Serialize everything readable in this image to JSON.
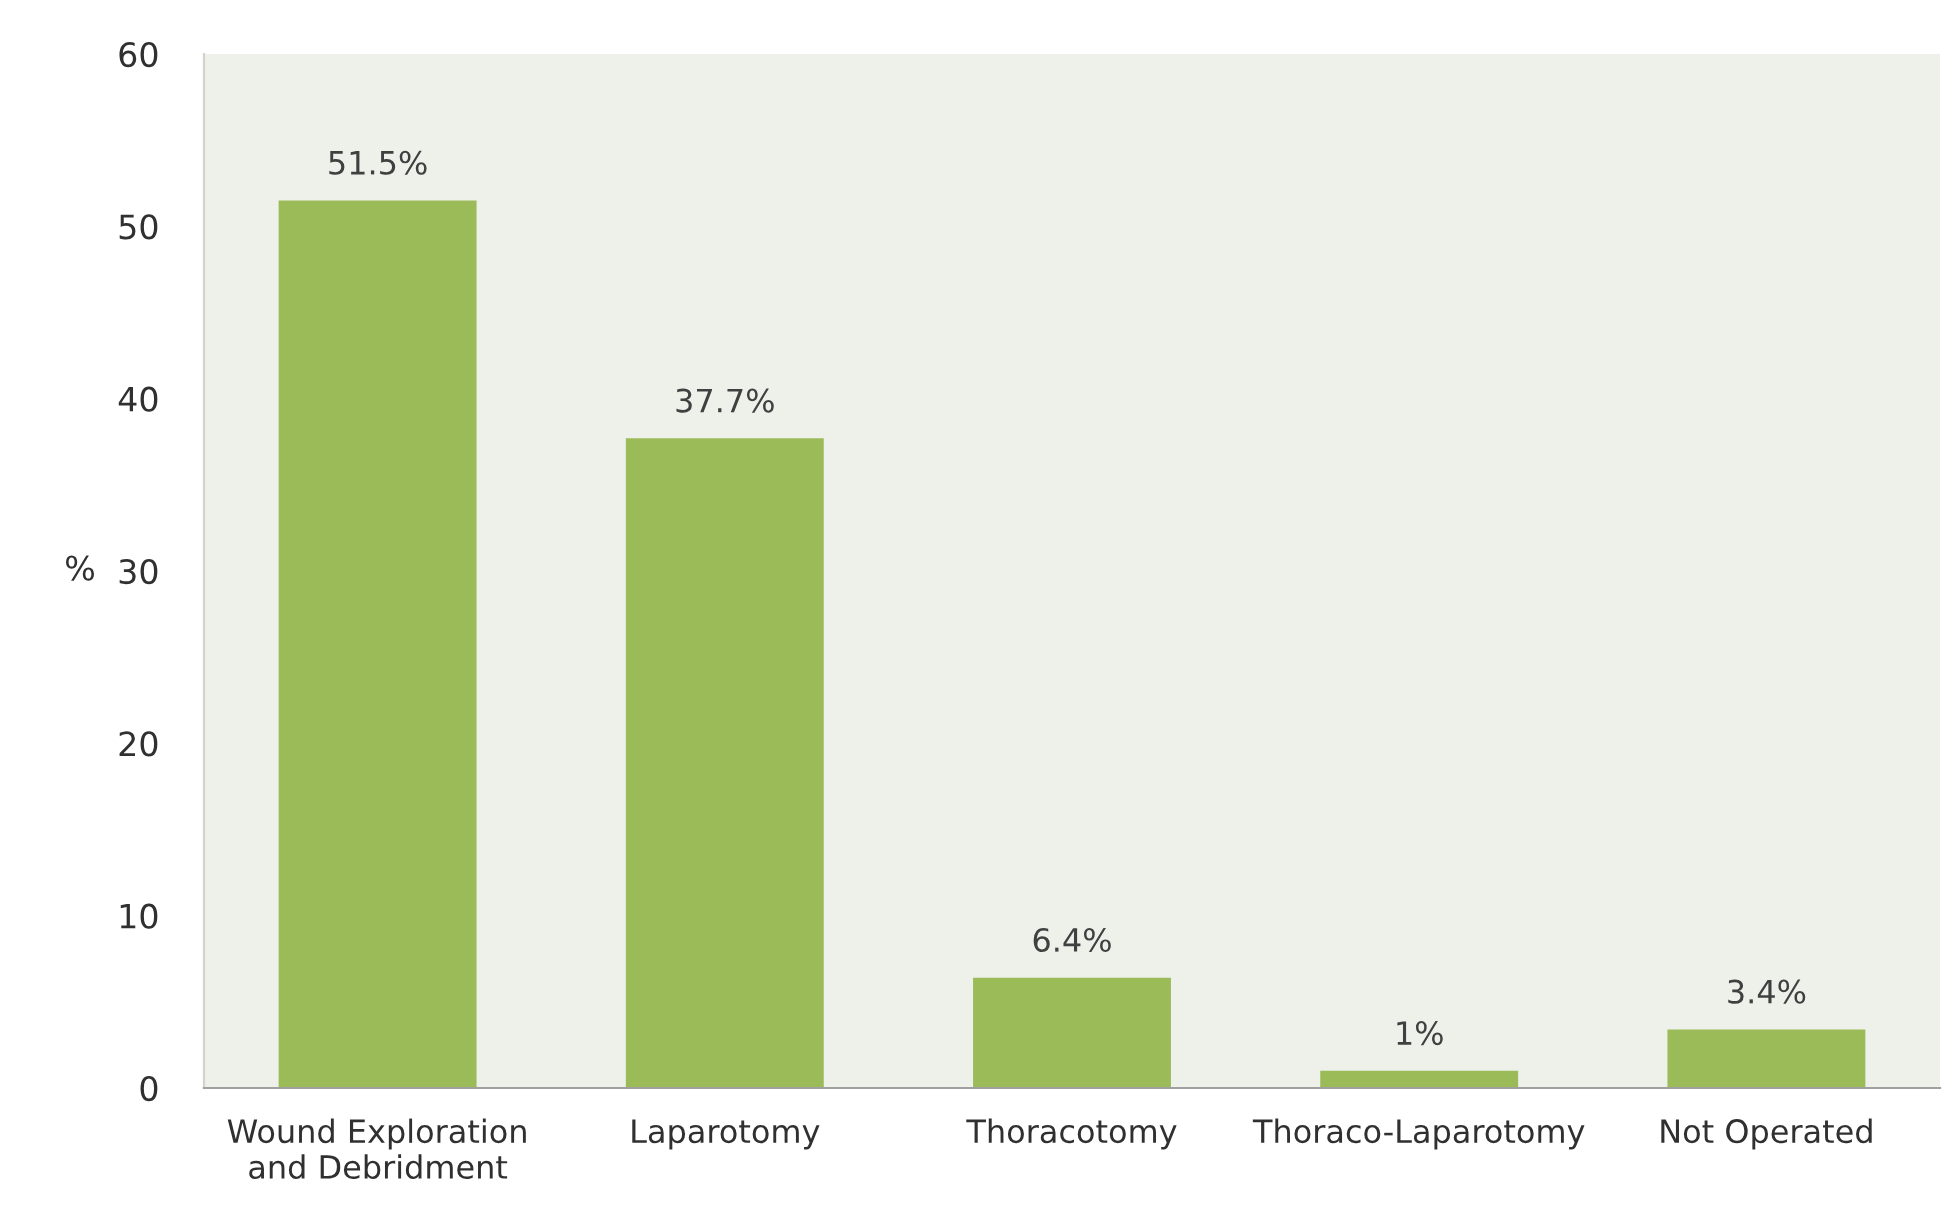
{
  "chart_data": {
    "type": "bar",
    "ylabel": "%",
    "categories": [
      "Wound Exploration\nand Debridment",
      "Laparotomy",
      "Thoracotomy",
      "Thoraco-Laparotomy",
      "Not Operated"
    ],
    "values": [
      51.5,
      37.7,
      6.4,
      1,
      3.4
    ],
    "value_labels": [
      "51.5%",
      "37.7%",
      "6.4%",
      "1%",
      "3.4%"
    ],
    "color": "#9bbb59",
    "ylim": [
      0,
      60
    ],
    "yticks": [
      0,
      10,
      20,
      30,
      40,
      50,
      60
    ],
    "grid": false,
    "legend": false
  }
}
